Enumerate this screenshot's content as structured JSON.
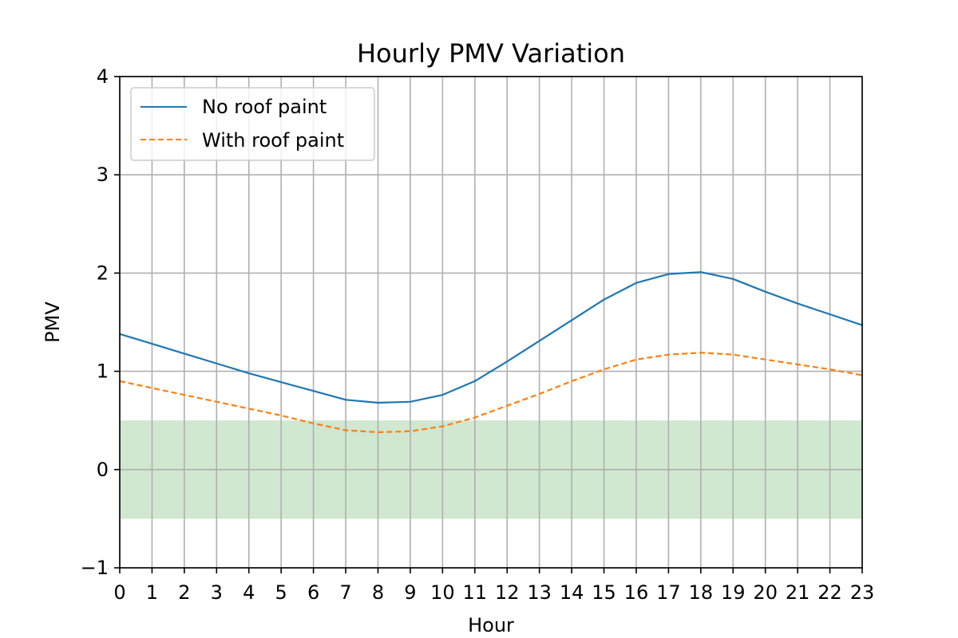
{
  "chart_data": {
    "type": "line",
    "title": "Hourly PMV Variation",
    "xlabel": "Hour",
    "ylabel": "PMV",
    "x": [
      0,
      1,
      2,
      3,
      4,
      5,
      6,
      7,
      8,
      9,
      10,
      11,
      12,
      13,
      14,
      15,
      16,
      17,
      18,
      19,
      20,
      21,
      22,
      23
    ],
    "x_tick_labels": [
      "0",
      "1",
      "2",
      "3",
      "4",
      "5",
      "6",
      "7",
      "8",
      "9",
      "10",
      "11",
      "12",
      "13",
      "14",
      "15",
      "16",
      "17",
      "18",
      "19",
      "20",
      "21",
      "22",
      "23"
    ],
    "xlim": [
      0,
      23
    ],
    "ylim": [
      -1,
      4
    ],
    "y_ticks": [
      -1,
      0,
      1,
      2,
      3,
      4
    ],
    "y_tick_labels": [
      "−1",
      "0",
      "1",
      "2",
      "3",
      "4"
    ],
    "grid": true,
    "legend_position": "upper-left",
    "comfort_band": {
      "y_min": -0.5,
      "y_max": 0.5,
      "color": "#a9d4a9"
    },
    "series": [
      {
        "name": "No roof paint",
        "color": "#1f77b4",
        "style": "solid",
        "values": [
          1.38,
          1.28,
          1.18,
          1.08,
          0.98,
          0.89,
          0.8,
          0.71,
          0.68,
          0.69,
          0.76,
          0.9,
          1.1,
          1.31,
          1.52,
          1.73,
          1.9,
          1.99,
          2.01,
          1.94,
          1.81,
          1.69,
          1.58,
          1.47
        ]
      },
      {
        "name": "With roof paint",
        "color": "#ff7f0e",
        "style": "dashed",
        "values": [
          0.9,
          0.83,
          0.76,
          0.69,
          0.62,
          0.55,
          0.47,
          0.4,
          0.38,
          0.39,
          0.44,
          0.53,
          0.65,
          0.77,
          0.9,
          1.02,
          1.12,
          1.17,
          1.19,
          1.17,
          1.12,
          1.07,
          1.02,
          0.96
        ]
      }
    ]
  }
}
